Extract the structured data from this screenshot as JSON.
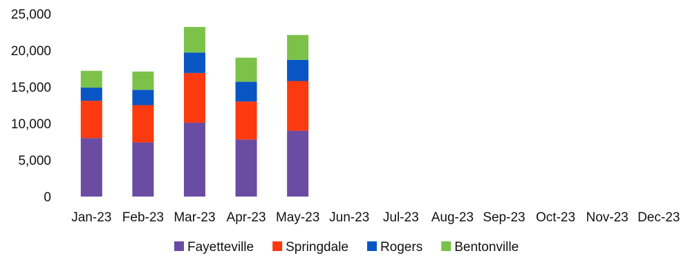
{
  "chart_data": {
    "type": "bar",
    "stacked": true,
    "categories": [
      "Jan-23",
      "Feb-23",
      "Mar-23",
      "Apr-23",
      "May-23",
      "Jun-23",
      "Jul-23",
      "Aug-23",
      "Sep-23",
      "Oct-23",
      "Nov-23",
      "Dec-23"
    ],
    "series": [
      {
        "name": "Fayetteville",
        "color": "#6a4ca3",
        "values": [
          8000,
          7400,
          10100,
          7800,
          9000,
          null,
          null,
          null,
          null,
          null,
          null,
          null
        ]
      },
      {
        "name": "Springdale",
        "color": "#fb3a10",
        "values": [
          5100,
          5100,
          6800,
          5200,
          6800,
          null,
          null,
          null,
          null,
          null,
          null,
          null
        ]
      },
      {
        "name": "Rogers",
        "color": "#0a55c4",
        "values": [
          1800,
          2100,
          2800,
          2700,
          2900,
          null,
          null,
          null,
          null,
          null,
          null,
          null
        ]
      },
      {
        "name": "Bentonville",
        "color": "#7cc24a",
        "values": [
          2300,
          2500,
          3500,
          3300,
          3400,
          null,
          null,
          null,
          null,
          null,
          null,
          null
        ]
      }
    ],
    "y_ticks": [
      "0",
      "5,000",
      "10,000",
      "15,000",
      "20,000",
      "25,000"
    ],
    "ylim": [
      0,
      25000
    ],
    "title": "",
    "xlabel": "",
    "ylabel": "",
    "grid": false,
    "legend_position": "bottom"
  }
}
